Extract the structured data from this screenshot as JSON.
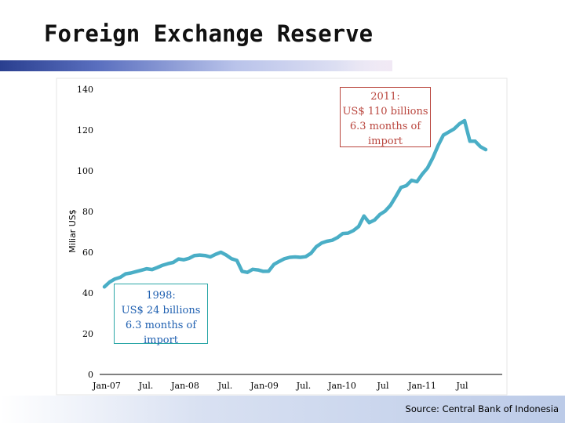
{
  "title": "Foreign Exchange Reserve",
  "source": "Source: Central Bank of Indonesia",
  "colors": {
    "line": "#4aaec6",
    "annot_2011": "#b9453d",
    "annot_1998_border": "#2aa6a6",
    "annot_1998_text": "#1e5fb0",
    "title_bar": "#2a3f8f"
  },
  "annotations": {
    "y2011": {
      "l1": "2011:",
      "l2": "US$ 110 billions",
      "l3": "6.3 months of",
      "l4": "import"
    },
    "y1998": {
      "l1": "1998:",
      "l2": "US$ 24 billions",
      "l3": "6.3 months of",
      "l4": "import"
    }
  },
  "chart_data": {
    "type": "line",
    "ylabel": "Miliar US$",
    "ylim": [
      0,
      140
    ],
    "y_ticks": [
      0,
      20,
      40,
      60,
      80,
      100,
      120,
      140
    ],
    "x_tick_labels": [
      "Jan-07",
      "Jul.",
      "Jan-08",
      "Jul.",
      "Jan-09",
      "Jul.",
      "Jan-10",
      "Jul",
      "Jan-11",
      "Jul"
    ],
    "grid": false,
    "series": [
      {
        "values": [
          43.0,
          45.4,
          46.9,
          47.7,
          49.4,
          49.8,
          50.5,
          51.2,
          51.9,
          51.5,
          52.5,
          53.6,
          54.4,
          55.0,
          56.7,
          56.3,
          57.0,
          58.4,
          58.6,
          58.4,
          57.7,
          59.0,
          60.0,
          58.6,
          56.8,
          56.0,
          50.6,
          50.1,
          51.6,
          51.3,
          50.6,
          50.7,
          54.0,
          55.5,
          56.8,
          57.5,
          57.7,
          57.5,
          57.8,
          59.5,
          62.7,
          64.5,
          65.4,
          65.9,
          67.2,
          69.2,
          69.4,
          70.6,
          72.6,
          77.8,
          74.5,
          75.8,
          78.5,
          80.2,
          83.0,
          87.3,
          91.8,
          92.7,
          95.3,
          94.6,
          98.3,
          101.4,
          106.3,
          112.4,
          117.5,
          119.0,
          120.5,
          123.0,
          124.6,
          114.5,
          114.5,
          111.8,
          110.4
        ]
      }
    ]
  }
}
